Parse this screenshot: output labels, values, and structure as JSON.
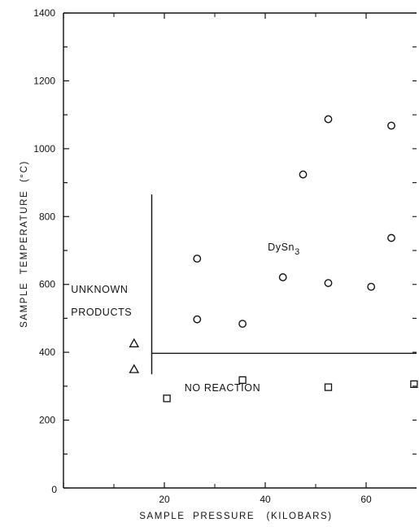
{
  "chart_data": {
    "type": "scatter",
    "xlabel": "SAMPLE  PRESSURE   (KILOBARS)",
    "ylabel": "SAMPLE  TEMPERATURE  (°C)",
    "xlim": [
      0,
      70
    ],
    "ylim": [
      0,
      1400
    ],
    "x_ticks": [
      0,
      20,
      40,
      60
    ],
    "x_tick_labels": [
      "0",
      "20",
      "40",
      "60"
    ],
    "y_ticks": [
      0,
      200,
      400,
      600,
      800,
      1000,
      1200,
      1400
    ],
    "y_tick_labels": [
      "0",
      "200",
      "400",
      "600",
      "800",
      "1000",
      "1200",
      "1400"
    ],
    "grid": false,
    "series": [
      {
        "marker": "circle",
        "points": [
          {
            "x": 26.5,
            "y": 676
          },
          {
            "x": 26.5,
            "y": 497
          },
          {
            "x": 35.5,
            "y": 484
          },
          {
            "x": 43.5,
            "y": 621
          },
          {
            "x": 47.5,
            "y": 924
          },
          {
            "x": 52.5,
            "y": 1087
          },
          {
            "x": 52.5,
            "y": 604
          },
          {
            "x": 61.0,
            "y": 593
          },
          {
            "x": 65.0,
            "y": 1068
          },
          {
            "x": 65.0,
            "y": 737
          }
        ]
      },
      {
        "marker": "triangle",
        "points": [
          {
            "x": 14.0,
            "y": 426
          },
          {
            "x": 14.0,
            "y": 350
          }
        ]
      },
      {
        "marker": "square",
        "points": [
          {
            "x": 20.5,
            "y": 264
          },
          {
            "x": 35.5,
            "y": 318
          },
          {
            "x": 52.5,
            "y": 297
          },
          {
            "x": 69.5,
            "y": 306
          }
        ]
      }
    ],
    "boundaries": [
      {
        "from": [
          17.5,
          335
        ],
        "to": [
          17.5,
          865
        ]
      },
      {
        "from": [
          17.5,
          397
        ],
        "to": [
          70,
          397
        ]
      }
    ],
    "region_labels": [
      {
        "text": "DySn3",
        "formula": {
          "base": "DySn",
          "sub": "3"
        },
        "x": 40.5,
        "y": 700
      },
      {
        "text": "UNKNOWN",
        "x": 1.5,
        "y": 575
      },
      {
        "text": "PRODUCTS",
        "x": 1.5,
        "y": 508
      },
      {
        "text": "NO  REACTION",
        "x": 24,
        "y": 285
      }
    ]
  }
}
